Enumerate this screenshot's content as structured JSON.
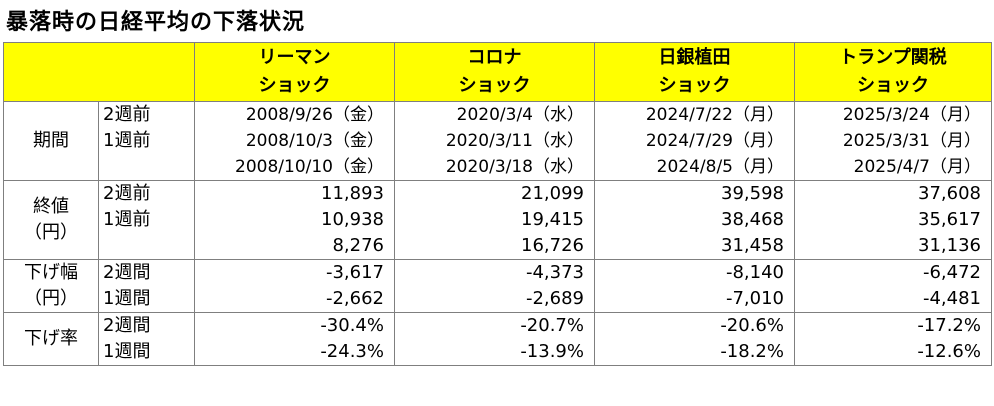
{
  "title": "暴落時の日経平均の下落状況",
  "columns": [
    {
      "line1": "リーマン",
      "line2": "ショック"
    },
    {
      "line1": "コロナ",
      "line2": "ショック"
    },
    {
      "line1": "日銀植田",
      "line2": "ショック"
    },
    {
      "line1": "トランプ関税",
      "line2": "ショック"
    }
  ],
  "groups": [
    {
      "label_lines": [
        "期間"
      ],
      "kind": "date",
      "rows": [
        {
          "sub": "2週前",
          "values": [
            "2008/9/26（金）",
            "2020/3/4（水）",
            "2024/7/22（月）",
            "2025/3/24（月）"
          ]
        },
        {
          "sub": "1週前",
          "values": [
            "2008/10/3（金）",
            "2020/3/11（水）",
            "2024/7/29（月）",
            "2025/3/31（月）"
          ]
        },
        {
          "sub": "",
          "values": [
            "2008/10/10（金）",
            "2020/3/18（水）",
            "2024/8/5（月）",
            "2025/4/7（月）"
          ]
        }
      ]
    },
    {
      "label_lines": [
        "終値",
        "（円）"
      ],
      "kind": "num",
      "rows": [
        {
          "sub": "2週前",
          "values": [
            "11,893",
            "21,099",
            "39,598",
            "37,608"
          ]
        },
        {
          "sub": "1週前",
          "values": [
            "10,938",
            "19,415",
            "38,468",
            "35,617"
          ]
        },
        {
          "sub": "",
          "values": [
            "8,276",
            "16,726",
            "31,458",
            "31,136"
          ]
        }
      ]
    },
    {
      "label_lines": [
        "下げ幅",
        "（円）"
      ],
      "kind": "num",
      "rows": [
        {
          "sub": "2週間",
          "values": [
            "-3,617",
            "-4,373",
            "-8,140",
            "-6,472"
          ]
        },
        {
          "sub": "1週間",
          "values": [
            "-2,662",
            "-2,689",
            "-7,010",
            "-4,481"
          ]
        }
      ]
    },
    {
      "label_lines": [
        "下げ率"
      ],
      "kind": "num",
      "rows": [
        {
          "sub": "2週間",
          "values": [
            "-30.4%",
            "-20.7%",
            "-20.6%",
            "-17.2%"
          ]
        },
        {
          "sub": "1週間",
          "values": [
            "-24.3%",
            "-13.9%",
            "-18.2%",
            "-12.6%"
          ]
        }
      ]
    }
  ]
}
